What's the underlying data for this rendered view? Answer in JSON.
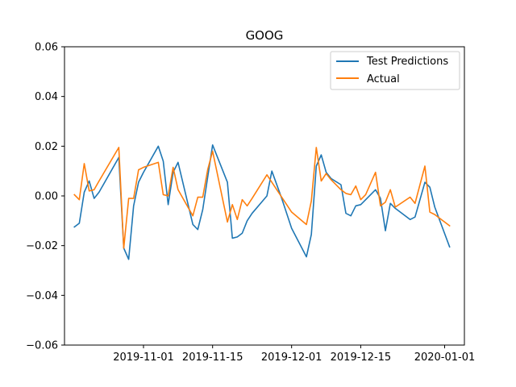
{
  "chart_data": {
    "type": "line",
    "title": "GOOG",
    "xlabel": "",
    "ylabel": "",
    "ylim": [
      -0.06,
      0.06
    ],
    "xlim": [
      "2019-10-16",
      "2020-01-05"
    ],
    "yticks": [
      -0.06,
      -0.04,
      -0.02,
      0.0,
      0.02,
      0.04,
      0.06
    ],
    "ytick_labels": [
      "−0.06",
      "−0.04",
      "−0.02",
      "0.00",
      "0.02",
      "0.04",
      "0.06"
    ],
    "xticks": [
      "2019-11-01",
      "2019-11-15",
      "2019-12-01",
      "2019-12-15",
      "2020-01-01"
    ],
    "xtick_labels": [
      "2019-11-01",
      "2019-11-15",
      "2019-12-01",
      "2019-12-15",
      "2020-01-01"
    ],
    "legend_position": "top-right",
    "x": [
      "2019-10-18",
      "2019-10-19",
      "2019-10-20",
      "2019-10-21",
      "2019-10-22",
      "2019-10-23",
      "2019-10-27",
      "2019-10-28",
      "2019-10-29",
      "2019-10-30",
      "2019-10-31",
      "2019-11-01",
      "2019-11-04",
      "2019-11-05",
      "2019-11-06",
      "2019-11-07",
      "2019-11-08",
      "2019-11-11",
      "2019-11-12",
      "2019-11-13",
      "2019-11-14",
      "2019-11-15",
      "2019-11-18",
      "2019-11-19",
      "2019-11-20",
      "2019-11-21",
      "2019-11-22",
      "2019-11-23",
      "2019-11-26",
      "2019-11-27",
      "2019-11-29",
      "2019-12-01",
      "2019-12-04",
      "2019-12-05",
      "2019-12-06",
      "2019-12-07",
      "2019-12-08",
      "2019-12-09",
      "2019-12-11",
      "2019-12-12",
      "2019-12-13",
      "2019-12-14",
      "2019-12-15",
      "2019-12-16",
      "2019-12-18",
      "2019-12-19",
      "2019-12-20",
      "2019-12-21",
      "2019-12-22",
      "2019-12-25",
      "2019-12-26",
      "2019-12-28",
      "2019-12-29",
      "2019-12-30",
      "2020-01-02"
    ],
    "series": [
      {
        "name": "Test Predictions",
        "color": "#1f77b4",
        "values": [
          -0.0125,
          -0.011,
          0.0015,
          0.006,
          -0.001,
          0.0015,
          0.0155,
          -0.021,
          -0.0255,
          -0.004,
          0.0055,
          0.0095,
          0.02,
          0.014,
          -0.0035,
          0.0095,
          0.0135,
          -0.0115,
          -0.0135,
          -0.0055,
          0.0075,
          0.0205,
          0.0055,
          -0.017,
          -0.0165,
          -0.015,
          -0.01,
          -0.007,
          0.0,
          0.01,
          -0.001,
          -0.013,
          -0.0245,
          -0.0155,
          0.012,
          0.0165,
          0.0095,
          0.007,
          0.0045,
          -0.007,
          -0.008,
          -0.004,
          -0.0035,
          -0.0015,
          0.0025,
          -0.001,
          -0.014,
          -0.003,
          -0.005,
          -0.0095,
          -0.0085,
          0.0055,
          0.0035,
          -0.0045,
          -0.0205
        ]
      },
      {
        "name": "Actual",
        "color": "#ff7f0e",
        "values": [
          0.0005,
          -0.0015,
          0.013,
          0.002,
          0.0025,
          0.006,
          0.0195,
          -0.021,
          -0.001,
          -0.001,
          0.0105,
          0.0115,
          0.0135,
          0.0005,
          0.0,
          0.0115,
          0.0025,
          -0.008,
          -0.0005,
          -0.0005,
          0.0105,
          0.018,
          -0.0105,
          -0.0035,
          -0.0095,
          -0.0015,
          -0.004,
          -0.001,
          0.0085,
          0.0055,
          -0.0005,
          -0.0065,
          -0.0115,
          -0.002,
          0.0195,
          0.006,
          0.009,
          0.0065,
          0.0025,
          0.001,
          0.0005,
          0.004,
          -0.0015,
          0.0005,
          0.0095,
          -0.004,
          -0.0025,
          0.0025,
          -0.0045,
          -0.0005,
          -0.003,
          0.012,
          -0.0065,
          -0.0075,
          -0.012
        ]
      }
    ]
  }
}
